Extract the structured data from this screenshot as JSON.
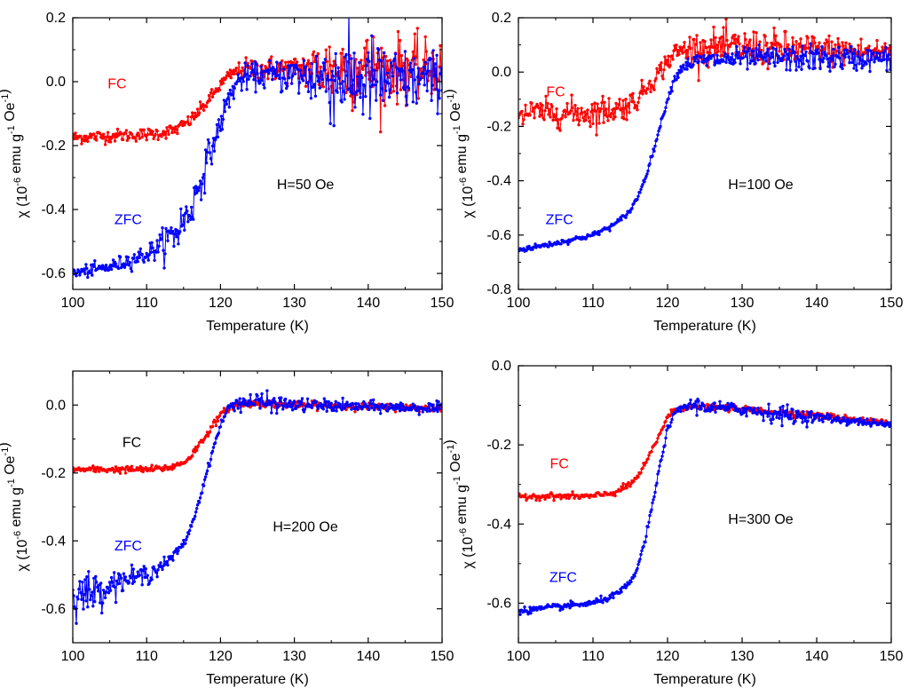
{
  "chart_data": [
    {
      "type": "scatter",
      "panel": "top-left",
      "xlabel": "Temperature (K)",
      "ylabel": "χ (10⁻⁶ emu g⁻¹ Oe⁻¹)",
      "xlim": [
        100,
        150
      ],
      "ylim": [
        -0.65,
        0.2
      ],
      "xticks": [
        "100",
        "110",
        "120",
        "130",
        "140",
        "150"
      ],
      "yticks": [
        "0.2",
        "0.0",
        "-0.2",
        "-0.4",
        "-0.6"
      ],
      "annotation": "H=50 Oe",
      "series": [
        {
          "name": "FC",
          "color": "#ff0000",
          "x": [
            100,
            105,
            110,
            112,
            114,
            116,
            118,
            119,
            120,
            121,
            122,
            123,
            125,
            130,
            135,
            140,
            145,
            150
          ],
          "y": [
            -0.175,
            -0.17,
            -0.165,
            -0.16,
            -0.15,
            -0.12,
            -0.07,
            -0.04,
            -0.01,
            0.015,
            0.03,
            0.04,
            0.04,
            0.04,
            0.04,
            0.04,
            0.04,
            0.04
          ],
          "noise": [
            0.01,
            0.01,
            0.01,
            0.01,
            0.01,
            0.01,
            0.01,
            0.01,
            0.01,
            0.01,
            0.01,
            0.015,
            0.02,
            0.02,
            0.06,
            0.06,
            0.05,
            0.04
          ]
        },
        {
          "name": "ZFC",
          "color": "#0000ff",
          "x": [
            100,
            105,
            110,
            112,
            114,
            116,
            117,
            118,
            119,
            120,
            121,
            122,
            123,
            125,
            130,
            135,
            140,
            145,
            150
          ],
          "y": [
            -0.6,
            -0.58,
            -0.54,
            -0.51,
            -0.47,
            -0.4,
            -0.33,
            -0.26,
            -0.2,
            -0.13,
            -0.06,
            -0.01,
            0.01,
            0.02,
            0.02,
            0.01,
            0.0,
            0.0,
            0.01
          ],
          "noise": [
            0.01,
            0.01,
            0.015,
            0.02,
            0.04,
            0.03,
            0.03,
            0.03,
            0.02,
            0.02,
            0.02,
            0.02,
            0.02,
            0.02,
            0.03,
            0.07,
            0.07,
            0.05,
            0.04
          ]
        }
      ]
    },
    {
      "type": "scatter",
      "panel": "top-right",
      "xlabel": "Temperature (K)",
      "ylabel": "χ (10⁻⁶ emu g⁻¹ Oe⁻¹)",
      "xlim": [
        100,
        150
      ],
      "ylim": [
        -0.8,
        0.2
      ],
      "xticks": [
        "100",
        "110",
        "120",
        "130",
        "140",
        "150"
      ],
      "yticks": [
        "0.2",
        "0.0",
        "-0.2",
        "-0.4",
        "-0.6",
        "-0.8"
      ],
      "annotation": "H=100 Oe",
      "series": [
        {
          "name": "FC",
          "color": "#ff0000",
          "x": [
            100,
            105,
            110,
            114,
            116,
            117,
            118,
            119,
            120,
            121,
            122,
            124,
            130,
            140,
            150
          ],
          "y": [
            -0.15,
            -0.15,
            -0.15,
            -0.13,
            -0.1,
            -0.06,
            -0.03,
            0.0,
            0.04,
            0.07,
            0.08,
            0.09,
            0.09,
            0.08,
            0.07
          ],
          "noise": [
            0.025,
            0.025,
            0.03,
            0.025,
            0.02,
            0.02,
            0.02,
            0.02,
            0.02,
            0.02,
            0.025,
            0.03,
            0.035,
            0.03,
            0.025
          ]
        },
        {
          "name": "ZFC",
          "color": "#0000ff",
          "x": [
            100,
            105,
            110,
            113,
            115,
            116,
            117,
            118,
            119,
            120,
            121,
            122,
            124,
            130,
            140,
            150
          ],
          "y": [
            -0.655,
            -0.63,
            -0.6,
            -0.56,
            -0.51,
            -0.46,
            -0.39,
            -0.3,
            -0.2,
            -0.1,
            -0.02,
            0.02,
            0.04,
            0.05,
            0.05,
            0.05
          ],
          "noise": [
            0.005,
            0.005,
            0.005,
            0.005,
            0.005,
            0.005,
            0.005,
            0.005,
            0.005,
            0.005,
            0.008,
            0.01,
            0.015,
            0.02,
            0.025,
            0.02
          ]
        }
      ]
    },
    {
      "type": "scatter",
      "panel": "bottom-left",
      "xlabel": "Temperature (K)",
      "ylabel": "χ (10⁻⁶ emu g⁻¹ Oe⁻¹)",
      "xlim": [
        100,
        150
      ],
      "ylim": [
        -0.7,
        0.1
      ],
      "xticks": [
        "100",
        "110",
        "120",
        "130",
        "140",
        "150"
      ],
      "yticks": [
        "0.0",
        "-0.2",
        "-0.4",
        "-0.6"
      ],
      "annotation": "H=200 Oe",
      "series": [
        {
          "name": "FC",
          "color": "#ff0000",
          "x": [
            100,
            105,
            110,
            113,
            115,
            116,
            117,
            118,
            119,
            120,
            121,
            122,
            125,
            130,
            140,
            150
          ],
          "y": [
            -0.19,
            -0.19,
            -0.19,
            -0.185,
            -0.17,
            -0.15,
            -0.12,
            -0.09,
            -0.06,
            -0.03,
            -0.01,
            0.0,
            0.005,
            0.0,
            -0.005,
            -0.01
          ],
          "noise": [
            0.005,
            0.005,
            0.005,
            0.005,
            0.005,
            0.005,
            0.005,
            0.005,
            0.005,
            0.005,
            0.005,
            0.005,
            0.005,
            0.005,
            0.005,
            0.005
          ]
        },
        {
          "name": "ZFC",
          "color": "#0000ff",
          "x": [
            100,
            103,
            106,
            110,
            113,
            115,
            116,
            117,
            118,
            119,
            120,
            121,
            122,
            124,
            130,
            140,
            150
          ],
          "y": [
            -0.56,
            -0.55,
            -0.52,
            -0.5,
            -0.46,
            -0.41,
            -0.36,
            -0.29,
            -0.21,
            -0.13,
            -0.06,
            -0.01,
            0.005,
            0.01,
            0.0,
            -0.005,
            -0.01
          ],
          "noise": [
            0.03,
            0.03,
            0.015,
            0.015,
            0.008,
            0.006,
            0.005,
            0.005,
            0.005,
            0.005,
            0.005,
            0.005,
            0.01,
            0.015,
            0.01,
            0.008,
            0.008
          ]
        }
      ]
    },
    {
      "type": "scatter",
      "panel": "bottom-right",
      "xlabel": "Temperature (K)",
      "ylabel": "χ (10⁻⁶ emu g⁻¹ Oe⁻¹)",
      "xlim": [
        100,
        150
      ],
      "ylim": [
        -0.7,
        0.0
      ],
      "xticks": [
        "100",
        "110",
        "120",
        "130",
        "140",
        "150"
      ],
      "yticks": [
        "0.0",
        "-0.2",
        "-0.4",
        "-0.6"
      ],
      "annotation": "H=300 Oe",
      "series": [
        {
          "name": "FC",
          "color": "#ff0000",
          "x": [
            100,
            105,
            110,
            113,
            115,
            116,
            117,
            118,
            119,
            120,
            121,
            122,
            124,
            126,
            130,
            140,
            150
          ],
          "y": [
            -0.33,
            -0.33,
            -0.33,
            -0.32,
            -0.3,
            -0.28,
            -0.25,
            -0.21,
            -0.17,
            -0.13,
            -0.11,
            -0.105,
            -0.105,
            -0.105,
            -0.11,
            -0.125,
            -0.145
          ],
          "noise": [
            0.004,
            0.004,
            0.004,
            0.004,
            0.004,
            0.004,
            0.004,
            0.004,
            0.004,
            0.004,
            0.004,
            0.004,
            0.004,
            0.004,
            0.004,
            0.004,
            0.004
          ]
        },
        {
          "name": "ZFC",
          "color": "#0000ff",
          "x": [
            100,
            105,
            110,
            113,
            115,
            116,
            117,
            118,
            119,
            120,
            121,
            122,
            123,
            124,
            125,
            130,
            136,
            140,
            150
          ],
          "y": [
            -0.62,
            -0.61,
            -0.6,
            -0.58,
            -0.55,
            -0.51,
            -0.44,
            -0.35,
            -0.25,
            -0.16,
            -0.12,
            -0.105,
            -0.1,
            -0.1,
            -0.105,
            -0.11,
            -0.125,
            -0.13,
            -0.15
          ],
          "noise": [
            0.004,
            0.004,
            0.004,
            0.004,
            0.004,
            0.004,
            0.004,
            0.004,
            0.004,
            0.004,
            0.004,
            0.004,
            0.008,
            0.01,
            0.008,
            0.008,
            0.012,
            0.006,
            0.004
          ]
        }
      ]
    }
  ]
}
